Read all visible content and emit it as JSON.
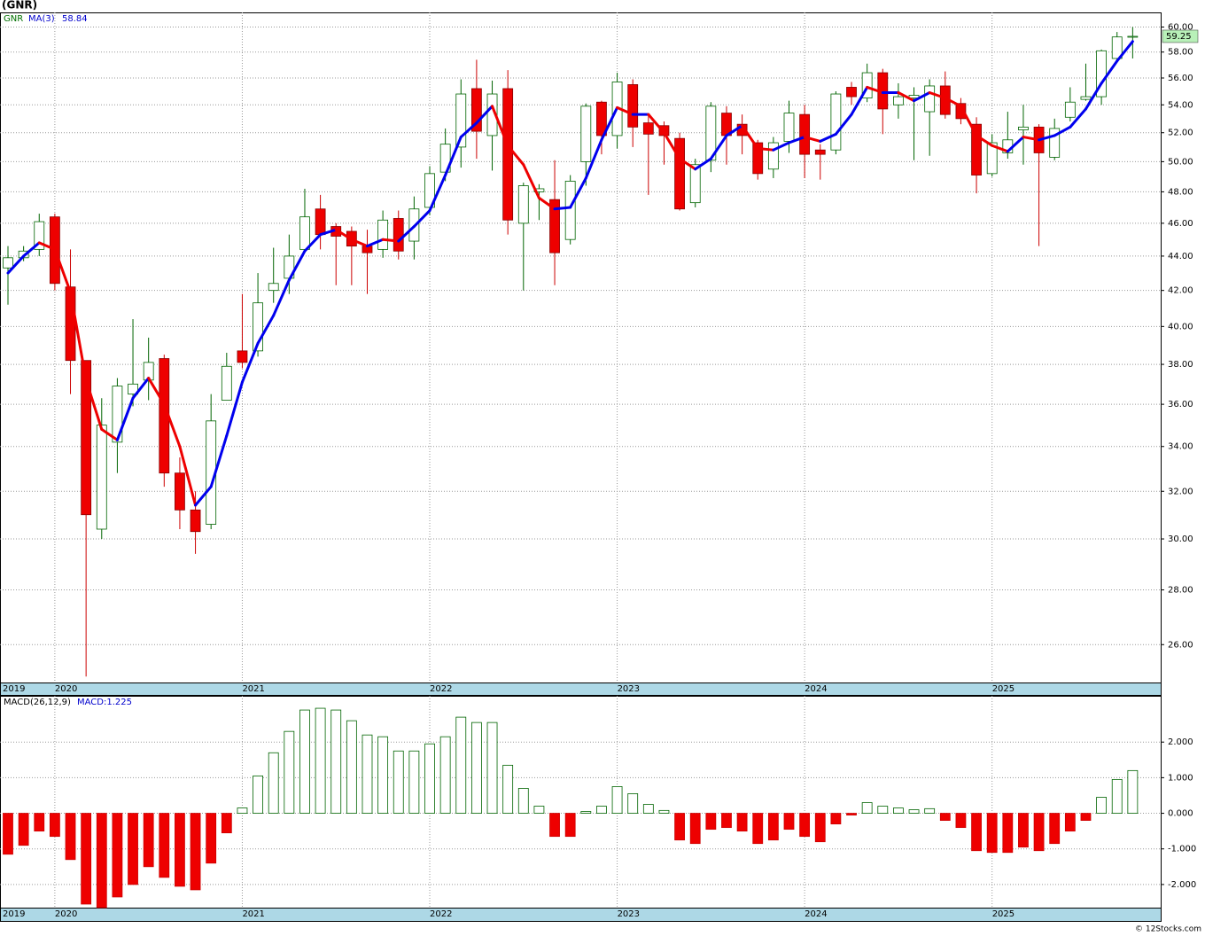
{
  "chart_data": [
    {
      "type": "candlestick",
      "title": "(GNR)",
      "symbol": "GNR",
      "categories": [
        "2019",
        null,
        null,
        "2020",
        null,
        null,
        null,
        null,
        null,
        null,
        null,
        null,
        null,
        null,
        null,
        "2021",
        null,
        null,
        null,
        null,
        null,
        null,
        null,
        null,
        null,
        null,
        null,
        "2022",
        null,
        null,
        null,
        null,
        null,
        null,
        null,
        null,
        null,
        null,
        null,
        "2023",
        null,
        null,
        null,
        null,
        null,
        null,
        null,
        null,
        null,
        null,
        null,
        "2024",
        null,
        null,
        null,
        null,
        null,
        null,
        null,
        null,
        null,
        null,
        null,
        "2025",
        null,
        null,
        null,
        null,
        null,
        null,
        null,
        null,
        null
      ],
      "open": [
        43.3,
        43.9,
        44.4,
        46.4,
        42.2,
        38.2,
        30.4,
        34.2,
        36.5,
        37.2,
        38.3,
        32.8,
        31.2,
        30.6,
        36.2,
        38.7,
        38.7,
        42.0,
        42.7,
        44.4,
        46.9,
        45.8,
        45.5,
        44.6,
        44.4,
        46.3,
        44.9,
        47.0,
        49.3,
        51.0,
        55.2,
        51.8,
        55.2,
        46.0,
        48.0,
        47.5,
        45.0,
        50.0,
        54.2,
        51.8,
        55.5,
        52.7,
        52.5,
        51.6,
        47.3,
        50.1,
        53.4,
        52.6,
        51.3,
        49.5,
        51.4,
        53.3,
        50.8,
        50.8,
        55.3,
        54.5,
        56.4,
        54.0,
        54.5,
        53.5,
        55.4,
        54.1,
        52.6,
        49.2,
        50.6,
        52.2,
        52.4,
        50.3,
        53.1,
        54.4,
        54.6,
        57.5,
        59.2
      ],
      "high": [
        44.6,
        44.6,
        46.6,
        46.6,
        44.4,
        38.2,
        36.3,
        37.3,
        40.4,
        39.4,
        38.5,
        33.5,
        32.0,
        36.5,
        38.6,
        41.8,
        43.0,
        44.5,
        45.3,
        48.2,
        47.8,
        46.0,
        45.8,
        45.6,
        46.8,
        46.8,
        47.7,
        49.7,
        52.3,
        55.9,
        57.4,
        55.8,
        56.6,
        48.6,
        48.5,
        50.1,
        49.1,
        54.1,
        54.3,
        56.4,
        55.9,
        53.2,
        52.8,
        52.0,
        50.2,
        54.2,
        53.9,
        53.3,
        51.5,
        51.7,
        54.3,
        54.0,
        51.2,
        55.0,
        55.7,
        57.1,
        56.7,
        55.6,
        55.3,
        55.9,
        56.5,
        54.5,
        53.1,
        51.9,
        53.5,
        54.0,
        52.6,
        53.0,
        55.3,
        57.1,
        58.2,
        59.6,
        60.0
      ],
      "low": [
        41.2,
        43.7,
        44.0,
        42.0,
        36.5,
        24.9,
        30.0,
        32.8,
        35.9,
        36.2,
        32.2,
        30.4,
        29.4,
        30.4,
        36.2,
        37.8,
        38.4,
        41.3,
        41.8,
        44.2,
        44.4,
        42.3,
        42.3,
        41.8,
        43.9,
        43.8,
        43.8,
        46.5,
        48.7,
        49.6,
        50.2,
        49.4,
        45.3,
        42.0,
        46.2,
        42.3,
        44.7,
        48.4,
        50.5,
        50.9,
        51.0,
        47.8,
        49.8,
        46.8,
        47.0,
        49.3,
        49.8,
        50.5,
        48.8,
        48.9,
        50.6,
        48.9,
        48.8,
        50.5,
        54.0,
        54.2,
        51.9,
        53.0,
        50.1,
        50.4,
        53.0,
        52.6,
        47.9,
        49.0,
        50.2,
        49.8,
        44.6,
        50.1,
        52.8,
        54.3,
        54.0,
        57.3,
        57.5
      ],
      "close": [
        43.9,
        44.3,
        46.1,
        42.4,
        38.2,
        31.0,
        35.0,
        36.9,
        37.0,
        38.1,
        32.8,
        31.2,
        30.3,
        35.2,
        37.9,
        38.1,
        41.3,
        42.4,
        44.0,
        46.4,
        45.3,
        45.2,
        44.6,
        44.2,
        46.2,
        44.3,
        46.9,
        49.2,
        51.2,
        54.8,
        52.1,
        54.8,
        46.2,
        48.4,
        48.2,
        44.2,
        48.7,
        53.9,
        51.8,
        55.7,
        52.4,
        51.9,
        51.8,
        46.9,
        49.8,
        53.9,
        51.8,
        51.8,
        49.2,
        51.3,
        53.4,
        50.5,
        50.5,
        54.8,
        54.6,
        56.4,
        53.7,
        54.6,
        54.7,
        55.4,
        53.3,
        53.0,
        49.1,
        51.3,
        51.5,
        52.4,
        50.6,
        52.3,
        54.2,
        54.6,
        58.1,
        59.2,
        59.25
      ],
      "up_color": "#ffffff",
      "down_color": "#ee0000",
      "ma": {
        "name": "MA(3)",
        "up_color": "#0000ee",
        "down_color": "#ee0000",
        "values": [
          43.0,
          44.0,
          44.8,
          44.4,
          41.9,
          37.2,
          34.8,
          34.3,
          36.3,
          37.3,
          36.0,
          34.0,
          31.4,
          32.2,
          34.5,
          37.1,
          39.1,
          40.6,
          42.6,
          44.3,
          45.3,
          45.6,
          45.0,
          44.6,
          45.0,
          44.9,
          45.8,
          46.8,
          49.1,
          51.7,
          52.7,
          53.9,
          51.1,
          49.8,
          47.6,
          46.9,
          47.0,
          48.9,
          51.5,
          53.8,
          53.3,
          53.3,
          52.0,
          50.2,
          49.5,
          50.2,
          51.8,
          52.5,
          50.9,
          50.8,
          51.3,
          51.7,
          51.4,
          51.9,
          53.3,
          55.3,
          54.9,
          54.9,
          54.3,
          54.9,
          54.5,
          53.9,
          51.8,
          51.1,
          50.7,
          51.7,
          51.5,
          51.8,
          52.4,
          53.7,
          55.6,
          57.3,
          58.84
        ]
      },
      "log_scale": true,
      "grid": true,
      "ylim": [
        24.7,
        61.2
      ],
      "yticks": [
        {
          "value": 26,
          "label": "26.00"
        },
        {
          "value": 28,
          "label": "28.00"
        },
        {
          "value": 30,
          "label": "30.00"
        },
        {
          "value": 32,
          "label": "32.00"
        },
        {
          "value": 34,
          "label": "34.00"
        },
        {
          "value": 36,
          "label": "36.00"
        },
        {
          "value": 38,
          "label": "38.00"
        },
        {
          "value": 40,
          "label": "40.00"
        },
        {
          "value": 42,
          "label": "42.00"
        },
        {
          "value": 44,
          "label": "44.00"
        },
        {
          "value": 46,
          "label": "46.00"
        },
        {
          "value": 48,
          "label": "48.00"
        },
        {
          "value": 50,
          "label": "50.00"
        },
        {
          "value": 52,
          "label": "52.00"
        },
        {
          "value": 54,
          "label": "54.00"
        },
        {
          "value": 56,
          "label": "56.00"
        },
        {
          "value": 58,
          "label": "58.00"
        },
        {
          "value": 60,
          "label": "60.00"
        }
      ]
    },
    {
      "type": "bar",
      "name": "MACD(26,12,9)",
      "legend_text": "MACD:1.225",
      "values": [
        -1.15,
        -0.9,
        -0.5,
        -0.65,
        -1.3,
        -2.55,
        -2.65,
        -2.35,
        -2.0,
        -1.5,
        -1.8,
        -2.05,
        -2.15,
        -1.4,
        -0.55,
        0.15,
        1.05,
        1.7,
        2.3,
        2.9,
        2.95,
        2.9,
        2.6,
        2.2,
        2.15,
        1.75,
        1.75,
        1.95,
        2.15,
        2.7,
        2.55,
        2.55,
        1.35,
        0.7,
        0.2,
        -0.65,
        -0.65,
        0.05,
        0.2,
        0.75,
        0.55,
        0.25,
        0.08,
        -0.75,
        -0.85,
        -0.45,
        -0.4,
        -0.5,
        -0.85,
        -0.75,
        -0.45,
        -0.65,
        -0.8,
        -0.3,
        -0.05,
        0.3,
        0.2,
        0.15,
        0.1,
        0.13,
        -0.2,
        -0.4,
        -1.05,
        -1.1,
        -1.1,
        -0.95,
        -1.05,
        -0.85,
        -0.5,
        -0.2,
        0.45,
        0.95,
        1.2
      ],
      "up_color": "#ffffff",
      "down_color": "#ee0000",
      "grid": true,
      "ylim": [
        -2.65,
        3.3
      ],
      "yticks": [
        {
          "value": -2,
          "label": "-2.000"
        },
        {
          "value": -1,
          "label": "-1.000"
        },
        {
          "value": 0,
          "label": "0.000"
        },
        {
          "value": 1,
          "label": "1.000"
        },
        {
          "value": 2,
          "label": "2.000"
        }
      ]
    }
  ],
  "footer": "© 12Stocks.com"
}
